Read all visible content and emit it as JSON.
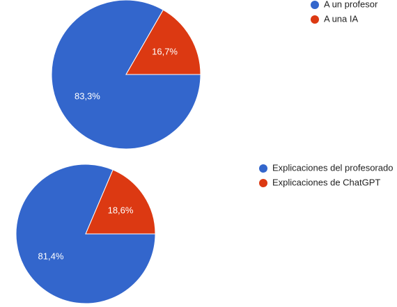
{
  "chart_data": [
    {
      "type": "pie",
      "categories": [
        "A un profesor",
        "A una IA"
      ],
      "values": [
        83.3,
        16.7
      ],
      "value_labels": [
        "83,3%",
        "16,7%"
      ],
      "colors": [
        "#3366cc",
        "#dc3912"
      ]
    },
    {
      "type": "pie",
      "categories": [
        "Explicaciones del profesorado",
        "Explicaciones de ChatGPT"
      ],
      "values": [
        81.4,
        18.6
      ],
      "value_labels": [
        "81,4%",
        "18,6%"
      ],
      "colors": [
        "#3366cc",
        "#dc3912"
      ]
    }
  ]
}
